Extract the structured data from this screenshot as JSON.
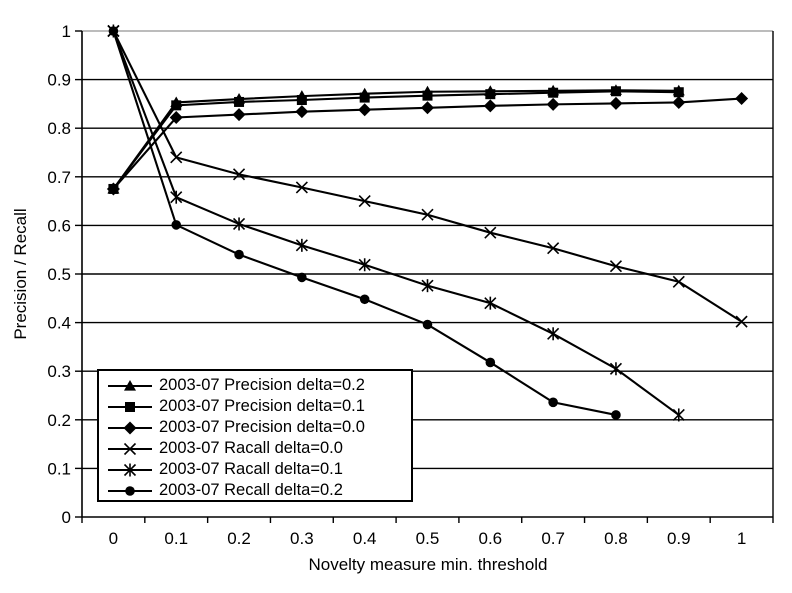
{
  "chart_data": {
    "type": "line",
    "title": "",
    "xlabel": "Novelty measure min. threshold",
    "ylabel": "Precision / Recall",
    "x": [
      0,
      0.1,
      0.2,
      0.3,
      0.4,
      0.5,
      0.6,
      0.7,
      0.8,
      0.9,
      1.0
    ],
    "x_ticks": [
      "0",
      "0.1",
      "0.2",
      "0.3",
      "0.4",
      "0.5",
      "0.6",
      "0.7",
      "0.8",
      "0.9",
      "1"
    ],
    "y_ticks": [
      "0",
      "0.1",
      "0.2",
      "0.3",
      "0.4",
      "0.5",
      "0.6",
      "0.7",
      "0.8",
      "0.9",
      "1"
    ],
    "ylim": [
      0,
      1
    ],
    "grid": "horizontal",
    "legend_position": "inside-bottom-left",
    "colors": {
      "series": "#000000",
      "gridline": "#000000",
      "top_gridline": "#a6a6a6",
      "axis": "#000000",
      "background": "#ffffff"
    },
    "series": [
      {
        "name": "2003-07 Precision delta=0.2",
        "marker": "triangle",
        "values": [
          0.675,
          0.853,
          0.86,
          0.866,
          0.871,
          0.875,
          0.876,
          0.877,
          0.878,
          0.877,
          null
        ]
      },
      {
        "name": "2003-07 Precision delta=0.1",
        "marker": "square",
        "values": [
          0.675,
          0.847,
          0.854,
          0.858,
          0.863,
          0.867,
          0.87,
          0.873,
          0.876,
          0.874,
          null
        ]
      },
      {
        "name": "2003-07 Precision delta=0.0",
        "marker": "diamond",
        "values": [
          0.675,
          0.822,
          0.828,
          0.834,
          0.838,
          0.842,
          0.846,
          0.849,
          0.851,
          0.853,
          0.861
        ]
      },
      {
        "name": "2003-07 Racall delta=0.0",
        "marker": "x",
        "values": [
          1.0,
          0.74,
          0.705,
          0.678,
          0.65,
          0.622,
          0.585,
          0.553,
          0.516,
          0.484,
          0.402
        ]
      },
      {
        "name": "2003-07 Racall delta=0.1",
        "marker": "asterisk",
        "values": [
          1.0,
          0.658,
          0.603,
          0.559,
          0.519,
          0.476,
          0.44,
          0.377,
          0.305,
          0.21,
          null
        ]
      },
      {
        "name": "2003-07 Recall delta=0.2",
        "marker": "circle",
        "values": [
          1.0,
          0.601,
          0.54,
          0.493,
          0.448,
          0.396,
          0.318,
          0.236,
          0.21,
          null,
          null
        ]
      }
    ]
  }
}
